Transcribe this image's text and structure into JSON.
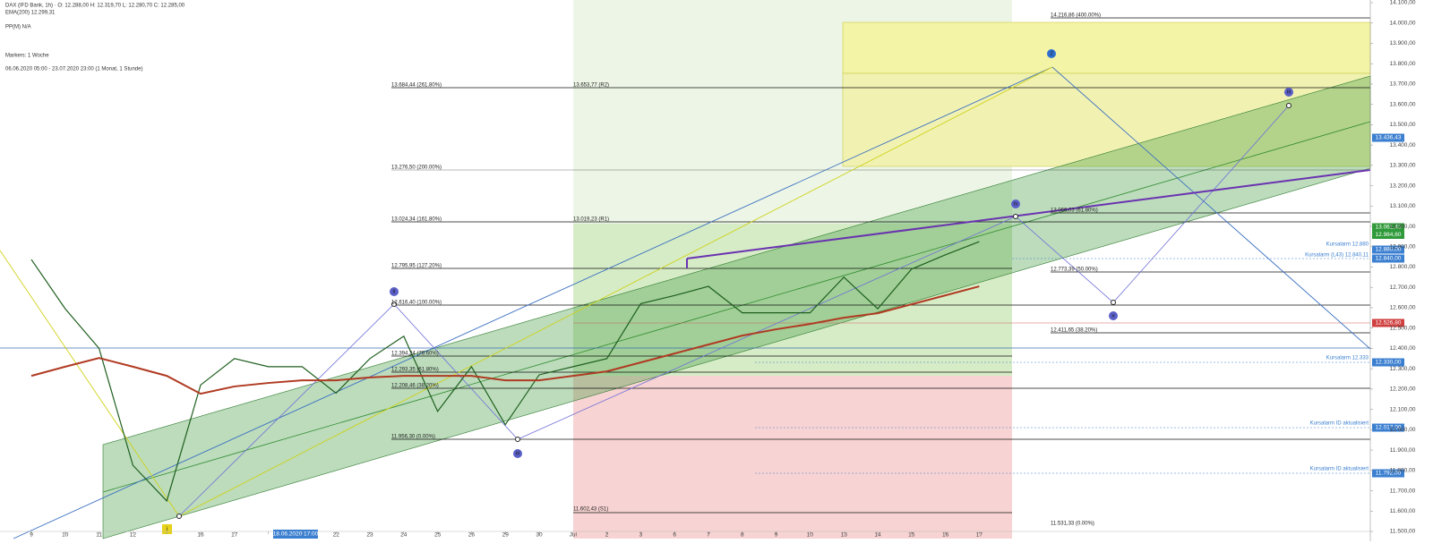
{
  "chart_data": {
    "type": "line",
    "categories": [
      "9",
      "10",
      "11",
      "12",
      null,
      "16",
      "17",
      null,
      null,
      "22",
      "23",
      "24",
      "25",
      "26",
      "29",
      "30",
      "Jul",
      "2",
      "3",
      "6",
      "7",
      "8",
      "9",
      "10",
      "13",
      "14",
      "15",
      "16",
      "17"
    ],
    "series": [
      {
        "name": "DAX (IFD Bank, 1h)",
        "color": "#1f5f1f",
        "values": [
          12837,
          12595,
          12400,
          11825,
          11650,
          12220,
          12350,
          12310,
          12310,
          12180,
          12350,
          12460,
          12090,
          12310,
          12025,
          12270,
          12310,
          12350,
          12620,
          12660,
          12705,
          12575,
          12575,
          12575,
          12750,
          12595,
          12790,
          12860,
          12925
        ]
      },
      {
        "name": "EMA(200)",
        "color": "#b03a22",
        "values": [
          12265,
          12310,
          12353,
          12310,
          12265,
          12177,
          12213,
          12230,
          12243,
          12243,
          12257,
          12265,
          12265,
          12265,
          12243,
          12243,
          12265,
          12287,
          12331,
          12375,
          12419,
          12463,
          12494,
          12520,
          12551,
          12573,
          12617,
          12661,
          12705
        ]
      }
    ],
    "ylim": [
      11500,
      14100
    ],
    "yticks": [
      {
        "value": 11500,
        "label": "11.500,00"
      },
      {
        "value": 11600,
        "label": "11.600,00"
      },
      {
        "value": 11700,
        "label": "11.700,00"
      },
      {
        "value": 11800,
        "label": "11.800,00"
      },
      {
        "value": 11900,
        "label": "11.900,00"
      },
      {
        "value": 12000,
        "label": "12.000,00"
      },
      {
        "value": 12100,
        "label": "12.100,00"
      },
      {
        "value": 12200,
        "label": "12.200,00"
      },
      {
        "value": 12300,
        "label": "12.300,00"
      },
      {
        "value": 12400,
        "label": "12.400,00"
      },
      {
        "value": 12500,
        "label": "12.500,00"
      },
      {
        "value": 12600,
        "label": "12.600,00"
      },
      {
        "value": 12700,
        "label": "12.700,00"
      },
      {
        "value": 12800,
        "label": "12.800,00"
      },
      {
        "value": 12900,
        "label": "12.900,00"
      },
      {
        "value": 13000,
        "label": "13.000,00"
      },
      {
        "value": 13100,
        "label": "13.100,00"
      },
      {
        "value": 13200,
        "label": "13.200,00"
      },
      {
        "value": 13300,
        "label": "13.300,00"
      },
      {
        "value": 13400,
        "label": "13.400,00"
      },
      {
        "value": 13500,
        "label": "13.500,00"
      },
      {
        "value": 13600,
        "label": "13.600,00"
      },
      {
        "value": 13700,
        "label": "13.700,00"
      },
      {
        "value": 13800,
        "label": "13.800,00"
      },
      {
        "value": 13900,
        "label": "13.900,00"
      },
      {
        "value": 14000,
        "label": "14.000,00"
      },
      {
        "value": 14100,
        "label": "14.100,00"
      }
    ],
    "grid": false
  },
  "header": [
    "DAX (IFD Bank, 1h) · O: 12.288,00  H: 12.319,70  L: 12.280,70  C: 12.285,00",
    "EMA(200) 12.299,31",
    "PP(M) N/A",
    "Markers: 1 Woche",
    "06.06.2020 05:00 - 23.07.2020 23:00 (1 Monat, 1 Stunde)"
  ],
  "cursor_date": "18.06.2020 17:00",
  "annotations": [
    "14.216,86 (400.00%)",
    "13.684,44 (261.80%)",
    "13.653,77 (R2)",
    "13.276,50 (200.00%)",
    "13.024,34 (161.80%)",
    "13.019,23 (R1)",
    "13.066,03 (61.80%)",
    "12.795,95 (127.20%)",
    "12.773,39 (50.00%)",
    "12.616,40 (100.00%)",
    "12.411,65 (38.20%)",
    "12.394,24 (78.60%)",
    "12.293,35 (61.80%)",
    "12.208,46 (38.20%)",
    "11.956,30 (0.00%)",
    "11.602,43 (S1)",
    "11.531,33 (0.00%)"
  ],
  "price_tags": [
    "13.436,43",
    "13.061,40",
    "12.984,60",
    "12.880,00",
    "12.840,00",
    "12.526,80",
    "12.330,00",
    "12.017,00",
    "11.792,00"
  ],
  "alerts": [
    "Kursalarm 12.880",
    "Kursalarm (L43) 12.840,11",
    "Kursalarm 12.333",
    "Kursalarm ID aktualisiert",
    "Kursalarm ID aktualisiert"
  ],
  "wave_labels": [
    "i",
    "ii",
    "iii",
    "iv",
    "v",
    "2",
    "iii"
  ]
}
